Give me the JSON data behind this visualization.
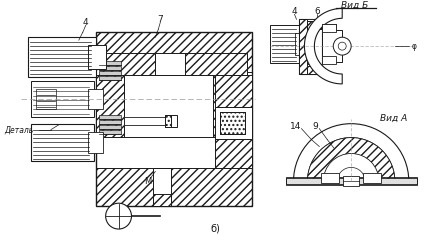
{
  "bg_fill": "#ffffff",
  "line_color": "#1a1a1a",
  "labels": {
    "detail": "Деталь",
    "M": "М",
    "b_view": "б)",
    "vid_b": "Вид Б",
    "vid_a": "Вид А",
    "num4_left": "4",
    "num7": "7",
    "num4_right": "4",
    "num6": "6",
    "num9": "9",
    "num14": "14",
    "phi": "φ"
  }
}
